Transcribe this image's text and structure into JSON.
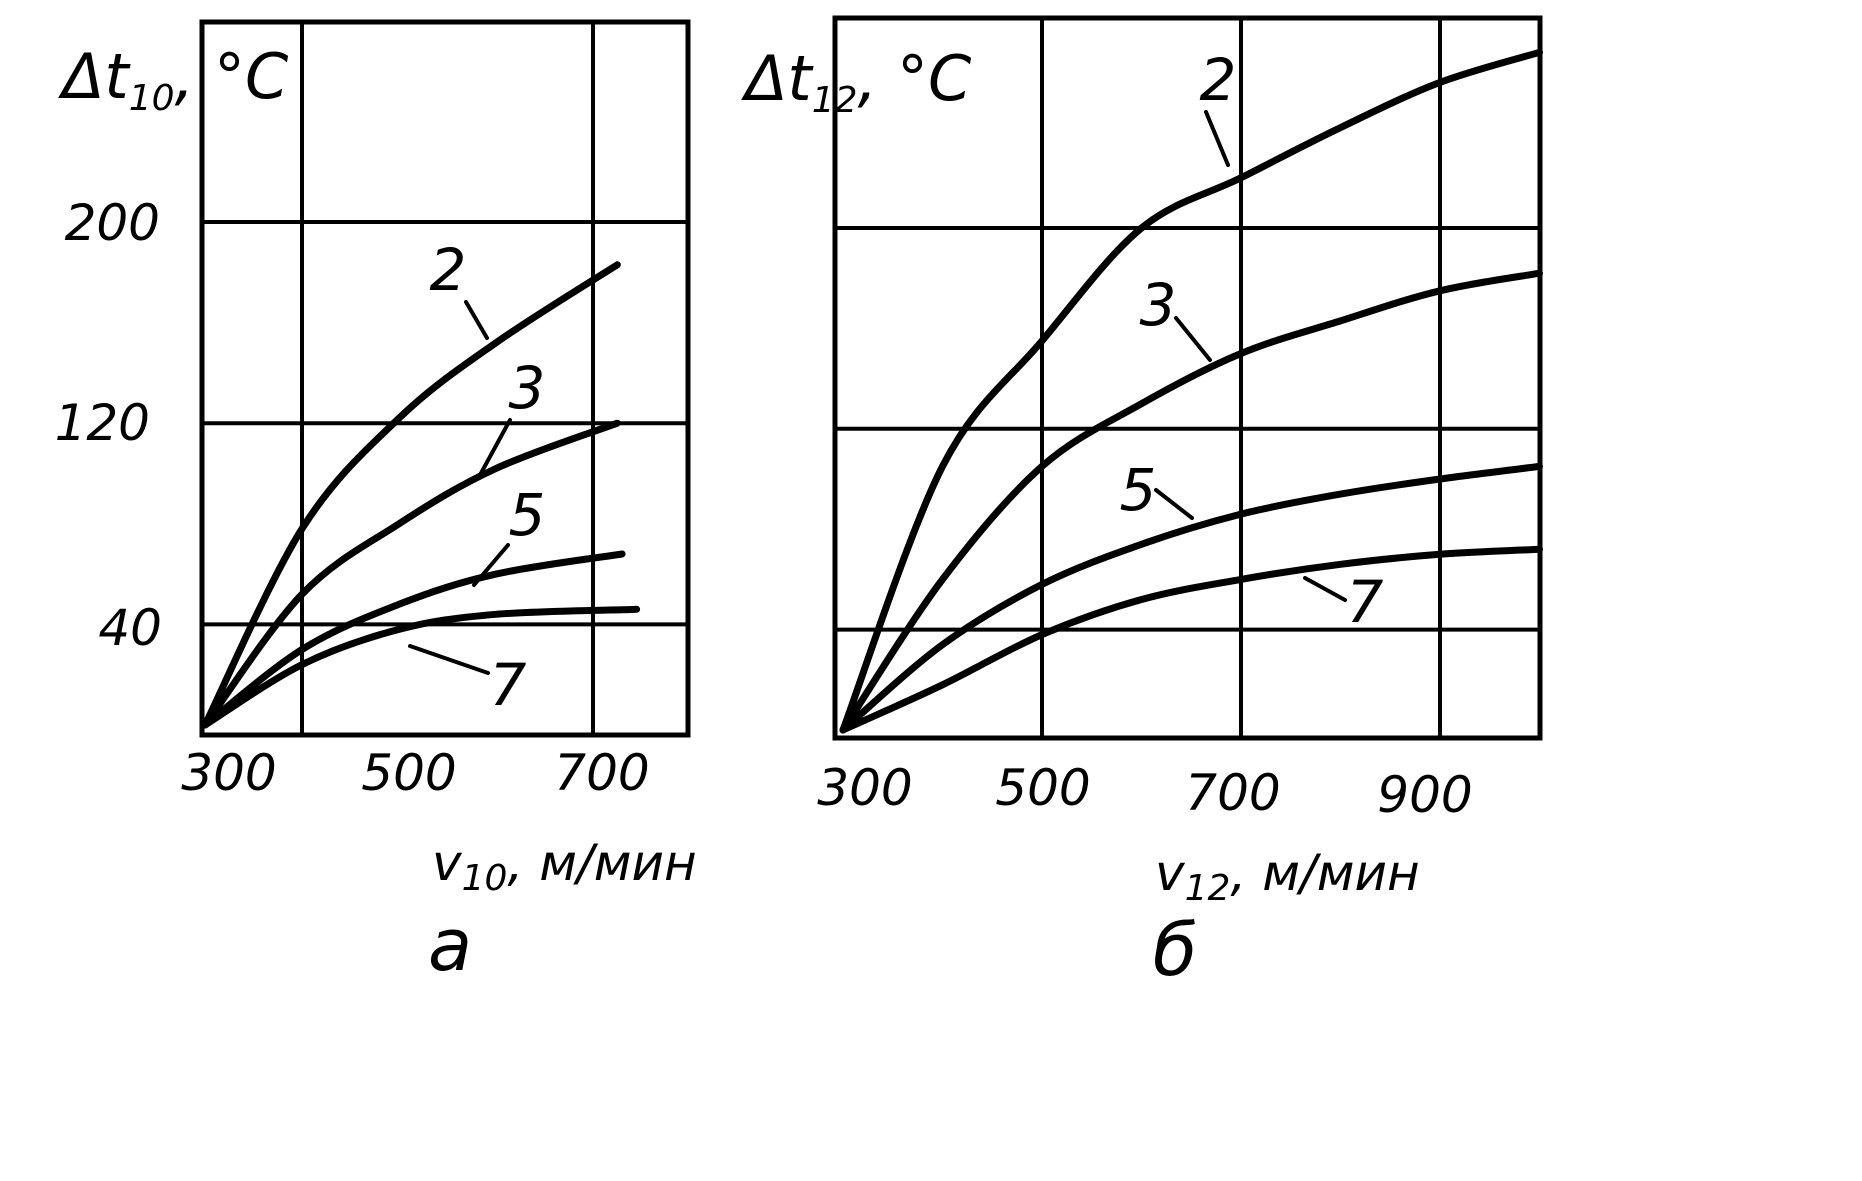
{
  "chart_data": [
    {
      "panel": "a",
      "type": "line",
      "ylabel_main": "Δt",
      "ylabel_sub": "10",
      "ylabel_unit": ", °C",
      "xlabel_main": "v",
      "xlabel_sub": "10",
      "xlabel_unit": ", м/мин",
      "x_ticks": [
        "300",
        "500",
        "700"
      ],
      "y_ticks": [
        "40",
        "120",
        "200"
      ],
      "xlim": [
        300,
        800
      ],
      "ylim": [
        0,
        280
      ],
      "grid": true,
      "series": [
        {
          "name": "2",
          "x": [
            300,
            400,
            500,
            600,
            725
          ],
          "y": [
            0,
            78,
            122,
            152,
            183
          ]
        },
        {
          "name": "3",
          "x": [
            300,
            400,
            500,
            600,
            725
          ],
          "y": [
            0,
            52,
            80,
            102,
            120
          ]
        },
        {
          "name": "5",
          "x": [
            300,
            400,
            500,
            600,
            730
          ],
          "y": [
            0,
            30,
            48,
            60,
            68
          ]
        },
        {
          "name": "7",
          "x": [
            300,
            400,
            500,
            600,
            745
          ],
          "y": [
            0,
            24,
            38,
            44,
            46
          ]
        }
      ]
    },
    {
      "panel": "б",
      "type": "line",
      "ylabel_main": "Δt",
      "ylabel_sub": "12",
      "ylabel_unit": ", °C",
      "xlabel_main": "v",
      "xlabel_sub": "12",
      "xlabel_unit": ", м/мин",
      "x_ticks": [
        "300",
        "500",
        "700",
        "900"
      ],
      "xlim": [
        300,
        1000
      ],
      "ylim": [
        0,
        280
      ],
      "grid": true,
      "series": [
        {
          "name": "2",
          "x": [
            300,
            400,
            500,
            600,
            700,
            800,
            900,
            1000
          ],
          "y": [
            0,
            105,
            155,
            200,
            220,
            240,
            258,
            270
          ]
        },
        {
          "name": "3",
          "x": [
            300,
            400,
            500,
            600,
            700,
            800,
            900,
            1000
          ],
          "y": [
            0,
            60,
            105,
            130,
            150,
            163,
            175,
            182
          ]
        },
        {
          "name": "5",
          "x": [
            300,
            400,
            500,
            600,
            700,
            800,
            900,
            1000
          ],
          "y": [
            0,
            34,
            58,
            74,
            86,
            94,
            100,
            105
          ]
        },
        {
          "name": "7",
          "x": [
            300,
            400,
            500,
            600,
            700,
            800,
            900,
            1000
          ],
          "y": [
            0,
            18,
            38,
            52,
            60,
            66,
            70,
            72
          ]
        }
      ]
    }
  ]
}
